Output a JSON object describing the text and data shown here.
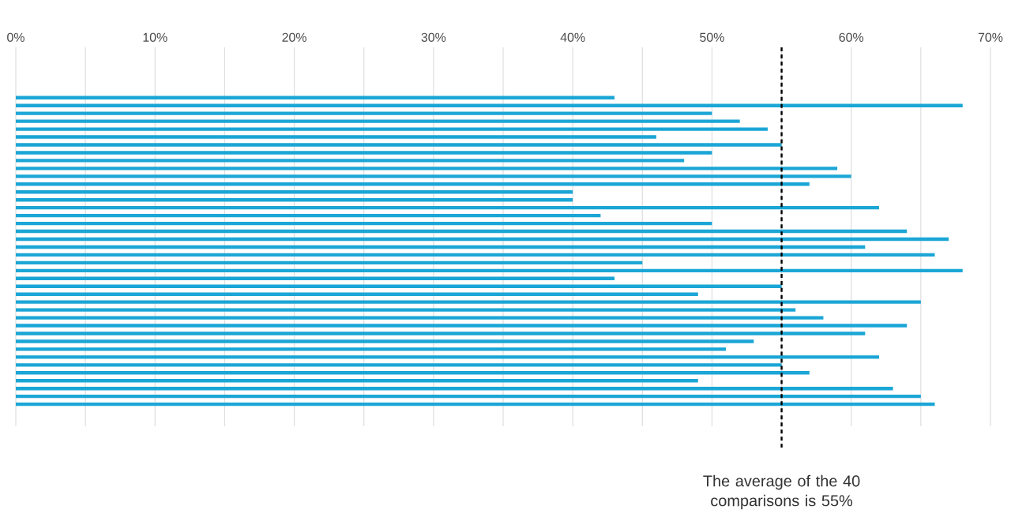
{
  "chart_data": {
    "type": "bar",
    "orientation": "horizontal",
    "categories": [
      null,
      null,
      null,
      null,
      null,
      null,
      null,
      null,
      null,
      null,
      null,
      null,
      null,
      null,
      null,
      null,
      null,
      null,
      null,
      null,
      null,
      null,
      null,
      null,
      null,
      null,
      null,
      null,
      null,
      null,
      null,
      null,
      null,
      null,
      null,
      null,
      null,
      null,
      null,
      null
    ],
    "values": [
      43,
      68,
      50,
      52,
      54,
      46,
      55,
      50,
      48,
      59,
      60,
      57,
      40,
      40,
      62,
      42,
      50,
      64,
      67,
      61,
      66,
      45,
      68,
      43,
      55,
      49,
      65,
      56,
      58,
      64,
      61,
      53,
      51,
      62,
      55,
      57,
      49,
      63,
      65,
      66
    ],
    "color": "#1ba6d6",
    "xlim": [
      0,
      70
    ],
    "xticks": [
      {
        "value": 0,
        "label": "0%"
      },
      {
        "value": 5,
        "label": null
      },
      {
        "value": 10,
        "label": "10%"
      },
      {
        "value": 15,
        "label": null
      },
      {
        "value": 20,
        "label": "20%"
      },
      {
        "value": 25,
        "label": null
      },
      {
        "value": 30,
        "label": "30%"
      },
      {
        "value": 35,
        "label": null
      },
      {
        "value": 40,
        "label": "40%"
      },
      {
        "value": 45,
        "label": null
      },
      {
        "value": 50,
        "label": "50%"
      },
      {
        "value": 55,
        "label": null
      },
      {
        "value": 60,
        "label": "60%"
      },
      {
        "value": 65,
        "label": null
      },
      {
        "value": 70,
        "label": "70%"
      }
    ],
    "grid": "x",
    "tick_labels": "x",
    "ref_lines": [
      {
        "axis": "x",
        "value": 55,
        "label": "The average of the 40 comparisons is 55%",
        "color": "#000000",
        "line_style": "dashed"
      }
    ]
  }
}
